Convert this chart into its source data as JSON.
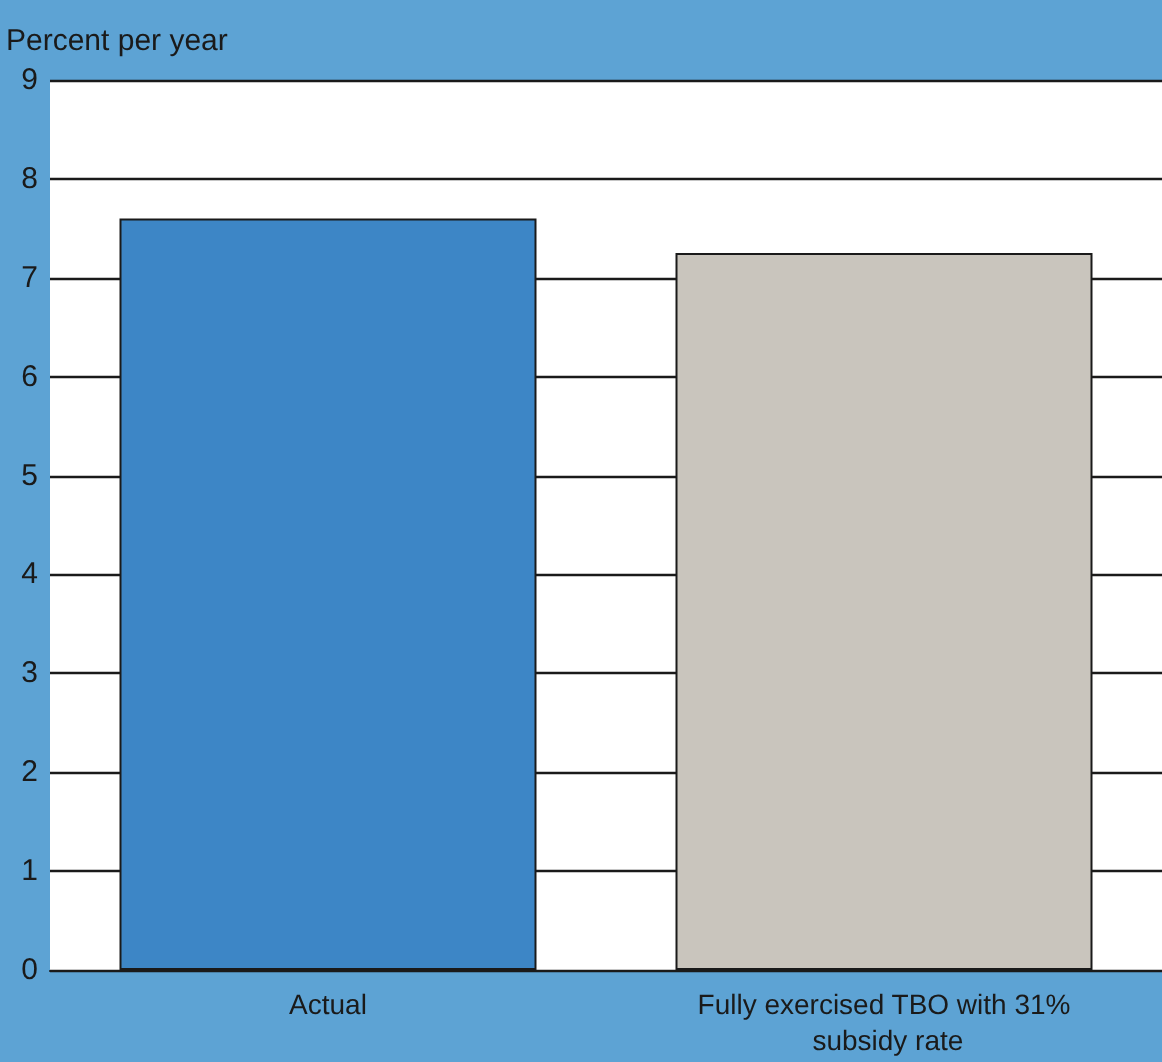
{
  "chart_data": {
    "type": "bar",
    "ylabel": "Percent per year",
    "categories": [
      "Actual",
      "Fully exercised TBO with 31% subsidy rate"
    ],
    "values": [
      7.6,
      7.25
    ],
    "colors": [
      "#3d86c6",
      "#c9c5bd"
    ],
    "ylim": [
      0,
      9
    ],
    "yticks": [
      0,
      1,
      2,
      3,
      4,
      5,
      6,
      7,
      8,
      9
    ],
    "grid": "y"
  }
}
